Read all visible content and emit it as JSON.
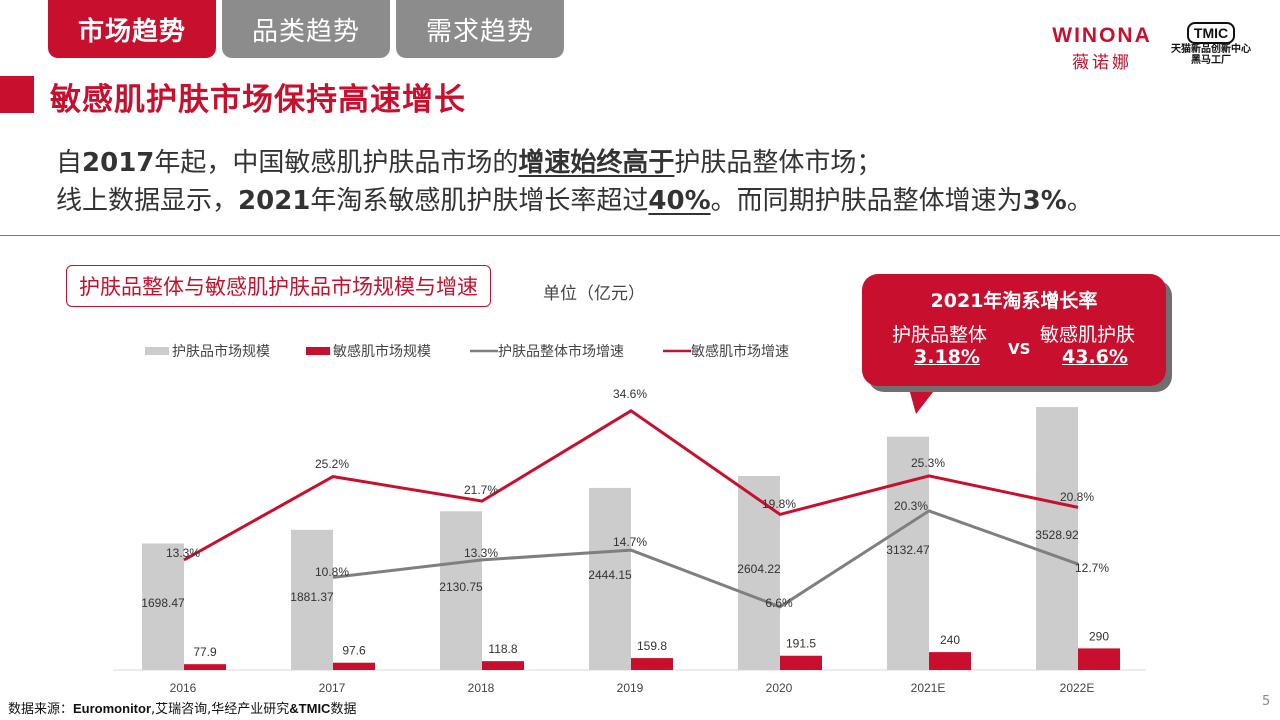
{
  "tabs": [
    {
      "label": "市场趋势",
      "active": true
    },
    {
      "label": "品类趋势",
      "active": false
    },
    {
      "label": "需求趋势",
      "active": false
    }
  ],
  "logos": {
    "winona_en": "WINONA",
    "winona_cn": "薇诺娜",
    "tmic_badge": "TMIC",
    "tmic_line1": "天猫新品创新中心",
    "tmic_line2": "黑马工厂"
  },
  "section_title": "敏感肌护肤市场保持高速增长",
  "summary": {
    "l1_a": "自",
    "l1_b": "2017",
    "l1_c": "年起，中国敏感肌护肤品市场的",
    "l1_d": "增速始终高于",
    "l1_e": "护肤品整体市场；",
    "l2_a": "线上数据显示，",
    "l2_b": "2021",
    "l2_c": "年淘系敏感肌护肤增长率超过",
    "l2_d": "40%",
    "l2_e": "。而同期护肤品整体增速为",
    "l2_f": "3%",
    "l2_g": "。"
  },
  "chart_title_box": "护肤品整体与敏感肌护肤品市场规模与增速",
  "unit_label": "单位（亿元）",
  "callout": {
    "title": "2021年淘系增长率",
    "left_label": "护肤品整体",
    "left_value": "3.18%",
    "vs": "VS",
    "right_label": "敏感肌护肤",
    "right_value": "43.6%"
  },
  "colors": {
    "accent": "#c8102e",
    "gray_bar": "#cccccc",
    "gray_line": "#7f7f7f",
    "tab_inactive": "#8c8c8c"
  },
  "chart_data": {
    "type": "bar",
    "categories": [
      "2016",
      "2017",
      "2018",
      "2019",
      "2020",
      "2021E",
      "2022E"
    ],
    "series": [
      {
        "name": "护肤品市场规模",
        "type": "bar",
        "color": "#cccccc",
        "values": [
          1698.47,
          1881.37,
          2130.75,
          2444.15,
          2604.22,
          3132.47,
          3528.92
        ],
        "labels": [
          "1698.47",
          "1881.37",
          "2130.75",
          "2444.15",
          "2604.22",
          "3132.47",
          "3528.92"
        ]
      },
      {
        "name": "敏感肌市场规模",
        "type": "bar",
        "color": "#c8102e",
        "values": [
          77.9,
          97.6,
          118.8,
          159.8,
          191.5,
          240,
          290
        ],
        "labels": [
          "77.9",
          "97.6",
          "118.8",
          "159.8",
          "191.5",
          "240",
          "290"
        ]
      },
      {
        "name": "护肤品整体市场增速",
        "type": "line",
        "color": "#7f7f7f",
        "values": [
          null,
          10.8,
          13.3,
          14.7,
          6.6,
          20.3,
          12.7
        ],
        "labels": [
          "",
          "10.8%",
          "13.3%",
          "14.7%",
          "6.6%",
          "20.3%",
          "12.7%"
        ]
      },
      {
        "name": "敏感肌市场增速",
        "type": "line",
        "color": "#c8102e",
        "values": [
          13.3,
          25.2,
          21.7,
          34.6,
          19.8,
          25.3,
          20.8
        ],
        "labels": [
          "13.3%",
          "25.2%",
          "21.7%",
          "34.6%",
          "19.8%",
          "25.3%",
          "20.8%"
        ]
      }
    ],
    "xlabel": "",
    "ylabel": "",
    "legend_position": "top-left",
    "grid": false
  },
  "source": {
    "label": "数据来源：",
    "en": "Euromonitor",
    "rest": ",艾瑞咨询,华经产业研究",
    "en2": "&TMIC",
    "tail": "数据"
  },
  "page_number": "5"
}
